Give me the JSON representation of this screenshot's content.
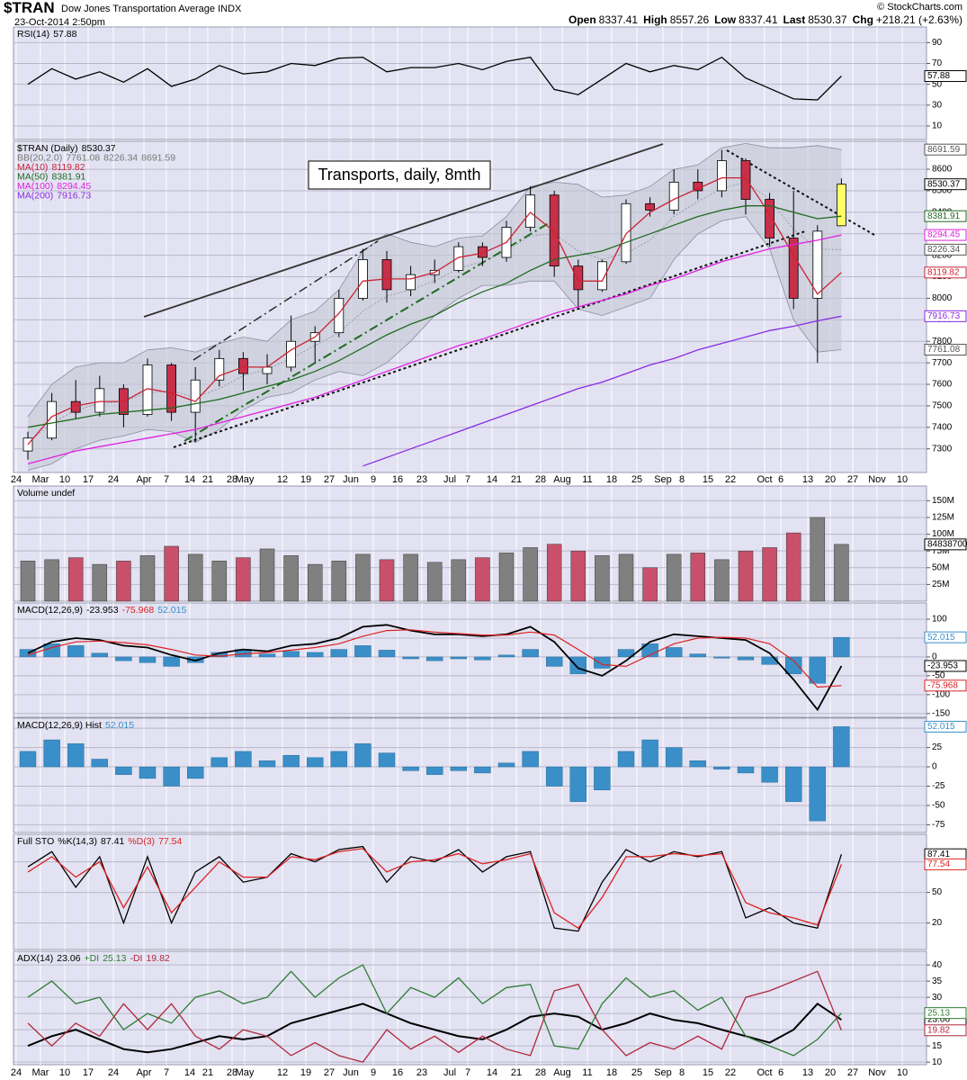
{
  "header": {
    "symbol": "$TRAN",
    "name": "Dow Jones Transportation Average INDX",
    "date": "23-Oct-2014 2:50pm",
    "source": "© StockCharts.com",
    "quote": [
      {
        "label": "Open",
        "value": "8337.41"
      },
      {
        "label": "High",
        "value": "8557.26"
      },
      {
        "label": "Low",
        "value": "8337.41"
      },
      {
        "label": "Last",
        "value": "8530.37"
      },
      {
        "label": "Chg",
        "value": "+218.21 (+2.63%)"
      }
    ]
  },
  "chart_data": [
    {
      "type": "line",
      "title": "RSI(14)",
      "ylim": [
        -3,
        105
      ],
      "yticks": [
        10,
        30,
        50,
        70,
        90
      ],
      "grid": true,
      "series": [
        {
          "name": "RSI(14)",
          "color": "#000000",
          "values": [
            50,
            65,
            55,
            62,
            52,
            65,
            48,
            55,
            68,
            60,
            62,
            70,
            68,
            75,
            76,
            62,
            66,
            66,
            70,
            64,
            72,
            76,
            45,
            40,
            55,
            70,
            62,
            68,
            64,
            76,
            56,
            46,
            36,
            35,
            57.88
          ]
        }
      ]
    },
    {
      "type": "candlestick",
      "title": "$TRAN (Daily)",
      "annotation": "Transports, daily, 8mth",
      "up_color": "#ffffff",
      "down_color": "#c8304a",
      "last_color": "#ffff66",
      "ylim": [
        7190,
        8730
      ],
      "yticks": [
        7300,
        7400,
        7500,
        7600,
        7700,
        7800,
        7900,
        8000,
        8100,
        8200,
        8300,
        8400,
        8500,
        8600
      ],
      "grid": true,
      "x_tick_labels": [
        "24",
        "Mar",
        "10",
        "17",
        "24",
        "Apr",
        "7",
        "14",
        "21",
        "28",
        "May",
        "12",
        "19",
        "27",
        "Jun",
        "9",
        "16",
        "23",
        "Jul",
        "7",
        "14",
        "21",
        "28",
        "Aug",
        "11",
        "18",
        "25",
        "Sep",
        "8",
        "15",
        "22",
        "Oct",
        "6",
        "13",
        "20",
        "27",
        "Nov",
        "10"
      ],
      "open": [
        7290,
        7350,
        7520,
        7470,
        7580,
        7460,
        7690,
        7470,
        7620,
        7720,
        7650,
        7680,
        7800,
        7840,
        8000,
        8180,
        8040,
        8110,
        8130,
        8240,
        8190,
        8330,
        8480,
        8150,
        8040,
        8170,
        8440,
        8410,
        8540,
        8500,
        8640,
        8460,
        8280,
        8000,
        8337.41
      ],
      "high": [
        7380,
        7560,
        7620,
        7640,
        7600,
        7720,
        7700,
        7680,
        7760,
        7750,
        7740,
        7920,
        7870,
        8040,
        8230,
        8220,
        8150,
        8180,
        8260,
        8260,
        8360,
        8520,
        8500,
        8180,
        8180,
        8460,
        8470,
        8600,
        8600,
        8690,
        8650,
        8490,
        8500,
        8340,
        8557.26
      ],
      "low": [
        7250,
        7340,
        7440,
        7450,
        7400,
        7450,
        7430,
        7330,
        7590,
        7570,
        7600,
        7660,
        7700,
        7820,
        7990,
        7980,
        8010,
        8070,
        8120,
        8150,
        8170,
        8310,
        8100,
        7950,
        8030,
        8160,
        8380,
        8390,
        8460,
        8470,
        8390,
        8240,
        7950,
        7700,
        8337.41
      ],
      "close": [
        7350,
        7520,
        7470,
        7580,
        7460,
        7690,
        7470,
        7620,
        7720,
        7650,
        7680,
        7800,
        7840,
        8000,
        8180,
        8040,
        8110,
        8130,
        8240,
        8190,
        8330,
        8480,
        8150,
        8040,
        8170,
        8440,
        8410,
        8540,
        8500,
        8640,
        8460,
        8280,
        8000,
        8312.16,
        8530.37
      ],
      "bands": {
        "name": "BB(20,2.0)",
        "color": "#8a8ea0",
        "upper": [
          7450,
          7600,
          7680,
          7700,
          7700,
          7760,
          7770,
          7750,
          7790,
          7820,
          7800,
          7900,
          7940,
          8040,
          8220,
          8300,
          8260,
          8240,
          8280,
          8290,
          8380,
          8520,
          8540,
          8530,
          8470,
          8480,
          8520,
          8600,
          8620,
          8700,
          8720,
          8700,
          8700,
          8710,
          8691.59
        ],
        "middle": [
          7330,
          7420,
          7480,
          7510,
          7520,
          7560,
          7570,
          7540,
          7580,
          7640,
          7670,
          7720,
          7780,
          7840,
          7940,
          8010,
          8040,
          8080,
          8140,
          8170,
          8220,
          8290,
          8300,
          8220,
          8180,
          8210,
          8270,
          8380,
          8450,
          8510,
          8540,
          8460,
          8320,
          8230,
          8226.34
        ],
        "lower": [
          7200,
          7230,
          7300,
          7340,
          7360,
          7390,
          7380,
          7330,
          7390,
          7480,
          7540,
          7560,
          7620,
          7660,
          7640,
          7700,
          7800,
          7920,
          8000,
          8060,
          8060,
          8080,
          8080,
          7950,
          7920,
          7960,
          8000,
          8180,
          8300,
          8360,
          8380,
          8230,
          7900,
          7750,
          7761.08
        ]
      },
      "series": [
        {
          "name": "MA(10)",
          "color": "#cc2233",
          "values": [
            7320,
            7450,
            7500,
            7520,
            7520,
            7580,
            7560,
            7520,
            7640,
            7680,
            7680,
            7760,
            7820,
            7930,
            8080,
            8090,
            8090,
            8120,
            8190,
            8210,
            8260,
            8400,
            8310,
            8080,
            8080,
            8300,
            8400,
            8460,
            8510,
            8560,
            8560,
            8390,
            8200,
            8020,
            8119.82
          ]
        },
        {
          "name": "MA(50)",
          "color": "#1f6b1f",
          "values": [
            7400,
            7420,
            7440,
            7460,
            7470,
            7480,
            7490,
            7510,
            7530,
            7560,
            7590,
            7620,
            7660,
            7710,
            7770,
            7830,
            7880,
            7920,
            7980,
            8030,
            8070,
            8130,
            8180,
            8200,
            8220,
            8260,
            8300,
            8340,
            8380,
            8410,
            8430,
            8430,
            8400,
            8370,
            8381.91
          ]
        },
        {
          "name": "MA(100)",
          "color": "#e020e0",
          "values": [
            7230,
            7260,
            7290,
            7310,
            7330,
            7350,
            7370,
            7390,
            7420,
            7450,
            7480,
            7510,
            7540,
            7580,
            7620,
            7660,
            7700,
            7740,
            7780,
            7810,
            7850,
            7890,
            7930,
            7960,
            7990,
            8020,
            8060,
            8090,
            8130,
            8170,
            8200,
            8230,
            8250,
            8270,
            8294.45
          ]
        },
        {
          "name": "MA(200)",
          "color": "#8a2be2",
          "values": [
            null,
            null,
            null,
            null,
            null,
            null,
            null,
            null,
            null,
            null,
            null,
            null,
            null,
            null,
            7220,
            7260,
            7300,
            7340,
            7380,
            7420,
            7460,
            7500,
            7540,
            7580,
            7610,
            7650,
            7690,
            7720,
            7760,
            7790,
            7820,
            7850,
            7870,
            7895,
            7916.73
          ]
        }
      ]
    },
    {
      "type": "bar",
      "title": "Volume undef",
      "up_color": "#808080",
      "down_color": "#c8506a",
      "ylim": [
        0,
        172
      ],
      "yticks": [
        {
          "value": 25,
          "label": "25M"
        },
        {
          "value": 50,
          "label": "50M"
        },
        {
          "value": 75,
          "label": "75M"
        },
        {
          "value": 100,
          "label": "100M"
        },
        {
          "value": 125,
          "label": "125M"
        },
        {
          "value": 150,
          "label": "150M"
        }
      ],
      "grid": true,
      "values": [
        60,
        62,
        65,
        55,
        60,
        68,
        82,
        70,
        60,
        65,
        78,
        68,
        55,
        60,
        70,
        62,
        70,
        58,
        62,
        65,
        72,
        80,
        85,
        75,
        68,
        70,
        50,
        70,
        72,
        62,
        75,
        80,
        102,
        125,
        84.8387
      ],
      "value_labels": [
        null,
        null,
        null,
        null,
        null,
        null,
        null,
        null,
        null,
        null,
        null,
        null,
        null,
        null,
        null,
        null,
        null,
        null,
        null,
        null,
        null,
        null,
        null,
        null,
        null,
        null,
        null,
        null,
        null,
        null,
        null,
        null,
        null,
        null,
        "84838700"
      ]
    },
    {
      "type": "macd",
      "title": "MACD(12,26,9)",
      "ylim": [
        -160,
        143
      ],
      "yticks": [
        -150,
        -100,
        -50,
        0,
        50,
        100
      ],
      "grid": true,
      "series": [
        {
          "name": "MACD",
          "color": "#000000",
          "values": [
            10,
            40,
            50,
            45,
            30,
            25,
            5,
            -10,
            10,
            20,
            15,
            30,
            35,
            50,
            80,
            85,
            70,
            60,
            60,
            55,
            60,
            80,
            40,
            -30,
            -50,
            -10,
            40,
            60,
            55,
            50,
            45,
            10,
            -60,
            -140,
            -23.953
          ]
        },
        {
          "name": "Signal",
          "color": "#dd2222",
          "values": [
            5,
            25,
            40,
            42,
            38,
            32,
            20,
            5,
            2,
            8,
            12,
            18,
            25,
            35,
            55,
            70,
            72,
            66,
            62,
            58,
            58,
            66,
            58,
            20,
            -20,
            -25,
            5,
            35,
            50,
            52,
            50,
            35,
            -10,
            -80,
            -75.968
          ]
        }
      ]
    },
    {
      "type": "hist",
      "title": "MACD(12,26,9) Hist",
      "color": "#3a8fc8",
      "ylim": [
        -85,
        63
      ],
      "yticks": [
        -75,
        -50,
        -25,
        0,
        25,
        50
      ],
      "grid": true,
      "values": [
        20,
        35,
        30,
        10,
        -10,
        -15,
        -25,
        -15,
        12,
        20,
        8,
        15,
        12,
        20,
        30,
        18,
        -5,
        -10,
        -5,
        -8,
        5,
        20,
        -25,
        -45,
        -30,
        20,
        35,
        25,
        8,
        -3,
        -8,
        -20,
        -45,
        -70,
        52.015
      ]
    },
    {
      "type": "line",
      "title": "Full STO",
      "ylim": [
        -6,
        107
      ],
      "yticks": [
        20,
        50,
        80
      ],
      "grid": true,
      "series": [
        {
          "name": "%K(14,3)",
          "color": "#000000",
          "values": [
            75,
            90,
            55,
            85,
            20,
            85,
            20,
            70,
            85,
            60,
            65,
            88,
            80,
            92,
            95,
            60,
            85,
            80,
            92,
            70,
            85,
            90,
            15,
            12,
            60,
            92,
            80,
            90,
            85,
            90,
            25,
            35,
            20,
            15,
            87.41
          ]
        },
        {
          "name": "%D(3)",
          "color": "#dd2222",
          "values": [
            70,
            85,
            65,
            80,
            35,
            75,
            30,
            55,
            80,
            65,
            65,
            85,
            82,
            90,
            93,
            70,
            80,
            82,
            88,
            78,
            82,
            88,
            30,
            15,
            45,
            85,
            85,
            88,
            86,
            88,
            40,
            30,
            25,
            18,
            77.54
          ]
        }
      ]
    },
    {
      "type": "line",
      "ylim": [
        9.2,
        44.2
      ],
      "yticks": [
        10,
        15,
        20,
        25,
        30,
        35,
        40
      ],
      "grid": true,
      "series": [
        {
          "name": "ADX(14)",
          "color": "#000000",
          "width": 2,
          "values": [
            15,
            18,
            20,
            17,
            14,
            13,
            14,
            16,
            18,
            17,
            18,
            22,
            24,
            26,
            28,
            25,
            22,
            20,
            18,
            17,
            20,
            24,
            25,
            24,
            20,
            22,
            25,
            23,
            22,
            20,
            18,
            16,
            20,
            28,
            23.06
          ]
        },
        {
          "name": "+DI",
          "color": "#2e7d32",
          "values": [
            30,
            35,
            28,
            30,
            20,
            25,
            22,
            30,
            32,
            28,
            30,
            38,
            30,
            36,
            40,
            25,
            33,
            30,
            36,
            28,
            33,
            34,
            15,
            14,
            28,
            36,
            30,
            32,
            26,
            30,
            18,
            15,
            12,
            17,
            25.13
          ]
        },
        {
          "name": "-DI",
          "color": "#b0283c",
          "values": [
            22,
            15,
            22,
            18,
            28,
            20,
            28,
            18,
            14,
            20,
            18,
            12,
            16,
            12,
            10,
            20,
            14,
            18,
            13,
            18,
            14,
            12,
            32,
            34,
            20,
            12,
            16,
            14,
            18,
            14,
            30,
            32,
            35,
            38,
            19.82
          ]
        }
      ]
    }
  ]
}
